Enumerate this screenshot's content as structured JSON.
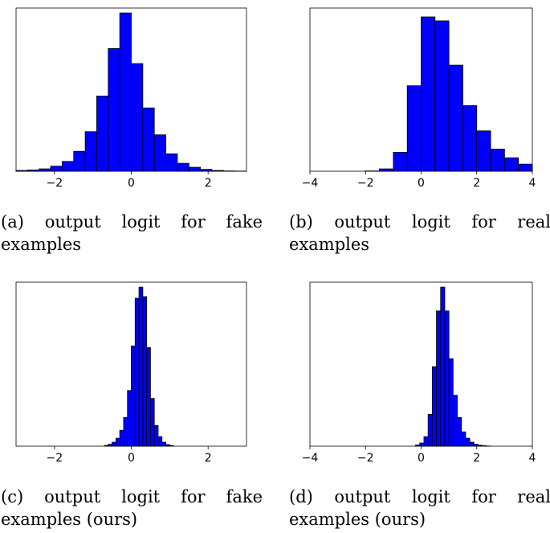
{
  "chart_data": [
    {
      "type": "bar",
      "panel": "a",
      "caption": "(a) output logit for fake examples",
      "xlim": [
        -3.0,
        3.0
      ],
      "ylim": [
        0,
        1.0
      ],
      "xticks": [
        -2,
        0,
        2
      ],
      "xtick_labels": [
        "−2",
        "0",
        "2"
      ],
      "bin_edges": [
        -3.0,
        -2.7,
        -2.4,
        -2.1,
        -1.8,
        -1.5,
        -1.2,
        -0.9,
        -0.6,
        -0.3,
        0.0,
        0.3,
        0.6,
        0.9,
        1.2,
        1.5,
        1.8,
        2.1,
        2.4,
        2.7,
        3.0
      ],
      "values": [
        0.005,
        0.008,
        0.015,
        0.032,
        0.062,
        0.126,
        0.25,
        0.475,
        0.775,
        1.0,
        0.68,
        0.4,
        0.23,
        0.11,
        0.05,
        0.025,
        0.012,
        0.005,
        0.002,
        0.001
      ],
      "color": "#0000ff",
      "edgecolor": "#000000"
    },
    {
      "type": "bar",
      "panel": "b",
      "caption": "(b) output logit for real examples",
      "xlim": [
        -4.0,
        4.0
      ],
      "ylim": [
        0,
        1.0
      ],
      "xticks": [
        -4,
        -2,
        0,
        2,
        4
      ],
      "xtick_labels": [
        "−4",
        "−2",
        "0",
        "2",
        "4"
      ],
      "bin_edges": [
        -2.0,
        -1.5,
        -1.0,
        -0.5,
        0.0,
        0.5,
        1.0,
        1.5,
        2.0,
        2.5,
        3.0,
        3.5,
        4.0
      ],
      "values": [
        0.002,
        0.015,
        0.12,
        0.54,
        0.975,
        0.95,
        0.67,
        0.415,
        0.255,
        0.14,
        0.085,
        0.045
      ],
      "color": "#0000ff",
      "edgecolor": "#000000"
    },
    {
      "type": "bar",
      "panel": "c",
      "caption": "(c) output logit for fake examples (ours)",
      "xlim": [
        -3.0,
        3.0
      ],
      "ylim": [
        0,
        1.0
      ],
      "xticks": [
        -2,
        0,
        2
      ],
      "xtick_labels": [
        "−2",
        "0",
        "2"
      ],
      "bin_edges": [
        -0.7,
        -0.6,
        -0.5,
        -0.4,
        -0.3,
        -0.2,
        -0.1,
        0.0,
        0.1,
        0.2,
        0.3,
        0.4,
        0.5,
        0.6,
        0.7,
        0.8,
        0.9,
        1.0,
        1.1
      ],
      "values": [
        0.005,
        0.012,
        0.025,
        0.05,
        0.1,
        0.18,
        0.35,
        0.63,
        0.93,
        1.0,
        0.94,
        0.62,
        0.3,
        0.13,
        0.06,
        0.025,
        0.01,
        0.004
      ],
      "color": "#0000ff",
      "edgecolor": "#000000"
    },
    {
      "type": "bar",
      "panel": "d",
      "caption": "(d) output logit for real examples (ours)",
      "xlim": [
        -4.0,
        4.0
      ],
      "ylim": [
        0,
        1.0
      ],
      "xticks": [
        -4,
        -2,
        0,
        2,
        4
      ],
      "xtick_labels": [
        "−4",
        "−2",
        "0",
        "2",
        "4"
      ],
      "bin_edges": [
        -0.2,
        -0.05,
        0.1,
        0.25,
        0.4,
        0.55,
        0.7,
        0.85,
        1.0,
        1.15,
        1.3,
        1.45,
        1.6,
        1.75,
        1.9,
        2.05,
        2.2,
        2.35,
        2.5
      ],
      "values": [
        0.008,
        0.02,
        0.06,
        0.2,
        0.5,
        0.85,
        1.0,
        0.85,
        0.55,
        0.32,
        0.18,
        0.09,
        0.05,
        0.025,
        0.012,
        0.006,
        0.003,
        0.001
      ],
      "color": "#0000ff",
      "edgecolor": "#000000"
    }
  ]
}
